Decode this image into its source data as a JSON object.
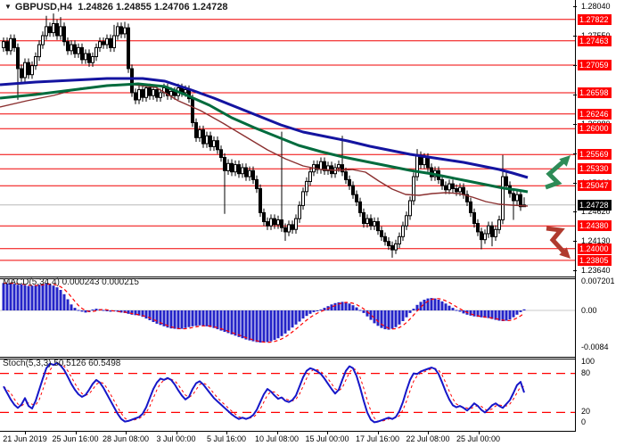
{
  "header": {
    "marker": "▼",
    "symbol": "GBPUSD,H4",
    "ohlc_text": "1.24826 1.24855 1.24706 1.24728"
  },
  "indicators": {
    "macd_label": "MACD(5,34,4) 0.000243 0.000215",
    "stoch_label": "Stoch(5,3,3) 50.5126 60.5498"
  },
  "colors": {
    "level_line": "#f00000",
    "current_line": "#b8b8b8",
    "badge_bg": "#ff0000",
    "current_badge_bg": "#000000",
    "bull_candle": "#ffffff",
    "bear_candle": "#000000",
    "ma_slow": "#1414a0",
    "ma_medium": "#006b3d",
    "ma_fast": "#8b3030",
    "macd_bar": "#2424c8",
    "signal_line": "#ff0000",
    "stoch_k": "#1616c8",
    "stoch_d": "#ff0000",
    "arrow_up": "#2e8b57",
    "arrow_down": "#b03a2e"
  },
  "time_axis": {
    "labels": [
      "21 Jun 2019",
      "25 Jun 16:00",
      "28 Jun 08:00",
      "3 Jul 00:00",
      "5 Jul 16:00",
      "10 Jul 08:00",
      "15 Jul 00:00",
      "17 Jul 16:00",
      "22 Jul 08:00",
      "25 Jul 00:00"
    ]
  },
  "price_axis": {
    "plain_ticks": [
      1.2804,
      1.2755,
      1.2706,
      1.2657,
      1.2608,
      1.2559,
      1.251,
      1.2462,
      1.2413,
      1.2364
    ],
    "level_badges": [
      1.27822,
      1.27463,
      1.27059,
      1.26598,
      1.26246,
      1.26,
      1.25569,
      1.2533,
      1.25047,
      1.2438,
      1.24,
      1.23805
    ],
    "current_badge": "1.24728"
  },
  "chart_data": [
    {
      "type": "candlestick",
      "title": "GBPUSD,H4",
      "current_ohlc": {
        "open": 1.24826,
        "high": 1.24855,
        "low": 1.24706,
        "close": 1.24728
      },
      "y_range": [
        1.2364,
        1.2804
      ],
      "first_open": 1.2735,
      "default_wick": 0.0007,
      "closes": [
        1.2745,
        1.273,
        1.275,
        1.2735,
        1.27,
        1.2685,
        1.271,
        1.269,
        1.2705,
        1.272,
        1.274,
        1.2755,
        1.277,
        1.276,
        1.2775,
        1.2755,
        1.277,
        1.2745,
        1.273,
        1.274,
        1.2725,
        1.2735,
        1.2715,
        1.2725,
        1.271,
        1.272,
        1.2735,
        1.2745,
        1.274,
        1.275,
        1.2735,
        1.2755,
        1.277,
        1.2758,
        1.2768,
        1.27,
        1.266,
        1.2648,
        1.2665,
        1.2652,
        1.2668,
        1.2655,
        1.2665,
        1.2652,
        1.266,
        1.2668,
        1.2655,
        1.2662,
        1.2655,
        1.2668,
        1.266,
        1.2665,
        1.265,
        1.261,
        1.2585,
        1.2598,
        1.2575,
        1.2588,
        1.257,
        1.258,
        1.2565,
        1.2552,
        1.253,
        1.2542,
        1.2528,
        1.254,
        1.2525,
        1.2535,
        1.252,
        1.253,
        1.2515,
        1.25,
        1.246,
        1.2445,
        1.2438,
        1.245,
        1.244,
        1.2448,
        1.2435,
        1.2428,
        1.244,
        1.2432,
        1.245,
        1.2472,
        1.2495,
        1.2512,
        1.2528,
        1.254,
        1.2532,
        1.2545,
        1.253,
        1.2538,
        1.2525,
        1.2535,
        1.254,
        1.2528,
        1.2515,
        1.2505,
        1.249,
        1.2478,
        1.246,
        1.2442,
        1.245,
        1.2438,
        1.2445,
        1.243,
        1.242,
        1.2412,
        1.2405,
        1.2398,
        1.2408,
        1.242,
        1.2438,
        1.2455,
        1.248,
        1.252,
        1.2555,
        1.254,
        1.2552,
        1.2535,
        1.252,
        1.253,
        1.2515,
        1.2505,
        1.2498,
        1.2508,
        1.25,
        1.2495,
        1.2502,
        1.249,
        1.2478,
        1.246,
        1.2442,
        1.2428,
        1.2415,
        1.2425,
        1.2438,
        1.242,
        1.2432,
        1.2448,
        1.252,
        1.2505,
        1.2492,
        1.248,
        1.249,
        1.247,
        1.24728
      ],
      "wick_overrides": {
        "4": {
          "l": 1.2648
        },
        "12": {
          "h": 1.2788
        },
        "14": {
          "h": 1.2792
        },
        "16": {
          "h": 1.2786
        },
        "31": {
          "h": 1.2773
        },
        "34": {
          "h": 1.2778
        },
        "62": {
          "l": 1.2458
        },
        "78": {
          "h": 1.2595
        },
        "79": {
          "l": 1.2413
        },
        "95": {
          "h": 1.2588
        },
        "109": {
          "l": 1.2385
        },
        "116": {
          "h": 1.2566
        },
        "134": {
          "l": 1.2399
        },
        "137": {
          "l": 1.2404
        },
        "140": {
          "h": 1.2556
        },
        "143": {
          "l": 1.2448
        },
        "146": {
          "h": 1.24855,
          "l": 1.24706
        }
      },
      "support_resistance_levels": [
        1.27822,
        1.27463,
        1.27059,
        1.26598,
        1.26246,
        1.26,
        1.25569,
        1.2533,
        1.25047,
        1.2438,
        1.24,
        1.23805
      ],
      "current_price": 1.24728,
      "moving_averages": [
        {
          "name": "ma-fast",
          "points": [
            [
              0,
              1.2636
            ],
            [
              30,
              1.26464
            ],
            [
              60,
              1.26554
            ],
            [
              90,
              1.26672
            ],
            [
              120,
              1.26717
            ],
            [
              150,
              1.26732
            ],
            [
              175,
              1.26687
            ],
            [
              200,
              1.26464
            ],
            [
              225,
              1.26301
            ],
            [
              250,
              1.26093
            ],
            [
              275,
              1.2587
            ],
            [
              300,
              1.25647
            ],
            [
              320,
              1.25498
            ],
            [
              340,
              1.25379
            ],
            [
              360,
              1.2532
            ],
            [
              380,
              1.25305
            ],
            [
              395,
              1.2532
            ],
            [
              410,
              1.25275
            ],
            [
              425,
              1.25126
            ],
            [
              440,
              1.24993
            ],
            [
              455,
              1.24903
            ],
            [
              470,
              1.24888
            ],
            [
              485,
              1.24918
            ],
            [
              500,
              1.24933
            ],
            [
              515,
              1.24918
            ],
            [
              530,
              1.24859
            ],
            [
              545,
              1.24785
            ],
            [
              560,
              1.2474
            ],
            [
              575,
              1.24725
            ],
            [
              592,
              1.2471
            ]
          ]
        },
        {
          "name": "ma-medium",
          "points": [
            [
              0,
              1.26509
            ],
            [
              40,
              1.26568
            ],
            [
              80,
              1.26643
            ],
            [
              120,
              1.26717
            ],
            [
              155,
              1.26747
            ],
            [
              185,
              1.26702
            ],
            [
              210,
              1.26554
            ],
            [
              235,
              1.2639
            ],
            [
              260,
              1.26182
            ],
            [
              285,
              1.26019
            ],
            [
              310,
              1.2587
            ],
            [
              335,
              1.25721
            ],
            [
              360,
              1.25617
            ],
            [
              385,
              1.25528
            ],
            [
              410,
              1.25454
            ],
            [
              435,
              1.25379
            ],
            [
              460,
              1.25305
            ],
            [
              485,
              1.25245
            ],
            [
              505,
              1.25186
            ],
            [
              525,
              1.25126
            ],
            [
              545,
              1.25067
            ],
            [
              565,
              1.25007
            ],
            [
              580,
              1.24978
            ],
            [
              592,
              1.24948
            ]
          ]
        },
        {
          "name": "ma-slow",
          "points": [
            [
              0,
              1.26732
            ],
            [
              40,
              1.26776
            ],
            [
              80,
              1.26806
            ],
            [
              120,
              1.26836
            ],
            [
              160,
              1.26836
            ],
            [
              185,
              1.26791
            ],
            [
              215,
              1.26643
            ],
            [
              240,
              1.26509
            ],
            [
              265,
              1.2636
            ],
            [
              290,
              1.26211
            ],
            [
              315,
              1.26063
            ],
            [
              340,
              1.25944
            ],
            [
              365,
              1.2587
            ],
            [
              390,
              1.25795
            ],
            [
              415,
              1.25706
            ],
            [
              440,
              1.25632
            ],
            [
              460,
              1.25572
            ],
            [
              480,
              1.25528
            ],
            [
              500,
              1.25483
            ],
            [
              520,
              1.25438
            ],
            [
              540,
              1.25379
            ],
            [
              560,
              1.2532
            ],
            [
              575,
              1.2526
            ],
            [
              592,
              1.25186
            ]
          ]
        }
      ]
    },
    {
      "type": "bar",
      "name": "MACD",
      "params": "(5,34,4)",
      "current_values": [
        0.000243,
        0.000215
      ],
      "unit": 0.001,
      "values": [
        6.4,
        6.3,
        6.35,
        6.2,
        6.0,
        6.1,
        5.9,
        5.7,
        5.8,
        5.9,
        6.0,
        6.2,
        6.3,
        6.1,
        5.8,
        5.4,
        4.8,
        3.8,
        2.6,
        1.4,
        0.6,
        0.1,
        -0.3,
        -0.5,
        -0.4,
        0.2,
        0.4,
        0.3,
        0.1,
        -0.2,
        -0.3,
        -0.2,
        -0.3,
        -0.5,
        -0.6,
        -0.8,
        -1.0,
        -1.1,
        -1.2,
        -1.5,
        -1.9,
        -2.3,
        -2.7,
        -3.1,
        -3.4,
        -3.7,
        -4.0,
        -4.2,
        -4.3,
        -4.4,
        -4.3,
        -4.1,
        -3.9,
        -3.7,
        -3.6,
        -3.5,
        -3.6,
        -3.7,
        -3.9,
        -4.1,
        -4.4,
        -4.7,
        -5.0,
        -5.3,
        -5.6,
        -5.9,
        -6.2,
        -6.5,
        -6.8,
        -7.0,
        -7.2,
        -7.4,
        -7.5,
        -7.5,
        -7.4,
        -7.2,
        -6.9,
        -6.5,
        -6.0,
        -5.4,
        -4.7,
        -4.0,
        -3.3,
        -2.6,
        -1.9,
        -1.3,
        -0.8,
        -0.4,
        -0.1,
        0.2,
        0.6,
        1.0,
        1.4,
        1.7,
        1.9,
        2.0,
        1.9,
        1.6,
        1.2,
        0.7,
        0.1,
        -0.6,
        -1.4,
        -2.2,
        -3.0,
        -3.6,
        -4.1,
        -4.4,
        -4.5,
        -4.3,
        -3.9,
        -3.3,
        -2.5,
        -1.6,
        -0.6,
        0.4,
        1.3,
        2.0,
        2.5,
        2.8,
        2.9,
        2.8,
        2.5,
        2.1,
        1.6,
        1.1,
        0.6,
        0.1,
        -0.3,
        -0.7,
        -1.0,
        -1.2,
        -1.4,
        -1.5,
        -1.6,
        -1.7,
        -1.8,
        -2.0,
        -2.2,
        -2.4,
        -2.5,
        -2.4,
        -2.1,
        -1.6,
        -1.0,
        -0.4,
        0.243
      ],
      "signal_period": 4,
      "y_axis_labels": [
        "0.007201",
        "0.00",
        "-0.0084"
      ]
    },
    {
      "type": "line",
      "name": "Stochastic",
      "params": "(5,3,3)",
      "current_values": [
        50.5126,
        60.5498
      ],
      "overbought": 80,
      "oversold": 20,
      "k_values": [
        60,
        50,
        40,
        32,
        27,
        32,
        42,
        30,
        26,
        38,
        55,
        72,
        88,
        95,
        93,
        96,
        92,
        85,
        75,
        64,
        55,
        48,
        44,
        47,
        55,
        64,
        70,
        66,
        58,
        48,
        38,
        28,
        18,
        10,
        6,
        7,
        9,
        11,
        13,
        18,
        28,
        42,
        56,
        66,
        72,
        70,
        73,
        70,
        63,
        54,
        46,
        40,
        44,
        56,
        65,
        68,
        63,
        56,
        49,
        42,
        37,
        32,
        27,
        22,
        17,
        13,
        10,
        12,
        10,
        12,
        16,
        24,
        36,
        48,
        56,
        52,
        46,
        41,
        43,
        38,
        36,
        39,
        46,
        60,
        74,
        84,
        88,
        86,
        83,
        79,
        72,
        64,
        56,
        49,
        55,
        70,
        84,
        91,
        88,
        76,
        58,
        38,
        20,
        9,
        5,
        6,
        8,
        10,
        12,
        10,
        13,
        22,
        36,
        54,
        70,
        80,
        79,
        83,
        85,
        87,
        89,
        87,
        79,
        66,
        52,
        40,
        31,
        28,
        30,
        27,
        23,
        28,
        34,
        30,
        24,
        20,
        25,
        31,
        34,
        30,
        27,
        33,
        39,
        50,
        62,
        67,
        50.5
      ],
      "d_period": 3,
      "y_axis_labels": [
        "100",
        "80",
        "20",
        "0"
      ]
    }
  ],
  "annotations": {
    "up_arrow": "buy-signal-arrow",
    "down_arrow": "sell-signal-arrow"
  }
}
